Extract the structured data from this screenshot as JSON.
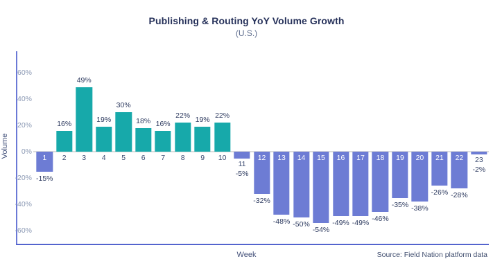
{
  "chart_data": {
    "type": "bar",
    "title": "Publishing & Routing YoY Volume Growth",
    "subtitle": "(U.S.)",
    "xlabel": "Week",
    "ylabel": "Volume",
    "source_note": "Source: Field Nation platform data",
    "categories": [
      "1",
      "2",
      "3",
      "4",
      "5",
      "6",
      "7",
      "8",
      "9",
      "10",
      "11",
      "12",
      "13",
      "14",
      "15",
      "16",
      "17",
      "18",
      "19",
      "20",
      "21",
      "22",
      "23"
    ],
    "values": [
      -15,
      16,
      49,
      19,
      30,
      18,
      16,
      22,
      19,
      22,
      -5,
      -32,
      -48,
      -50,
      -54,
      -49,
      -49,
      -46,
      -35,
      -38,
      -26,
      -28,
      -2
    ],
    "value_labels": [
      "-15%",
      "16%",
      "49%",
      "19%",
      "30%",
      "18%",
      "16%",
      "22%",
      "19%",
      "22%",
      "-5%",
      "-32%",
      "-48%",
      "-50%",
      "-54%",
      "-49%",
      "-49%",
      "-46%",
      "-35%",
      "-38%",
      "-26%",
      "-28%",
      "-2%"
    ],
    "y_ticks": [
      {
        "value": 60,
        "label": "60%"
      },
      {
        "value": 40,
        "label": "40%"
      },
      {
        "value": 20,
        "label": "20%"
      },
      {
        "value": 0,
        "label": "0%"
      },
      {
        "value": -20,
        "label": "-20%"
      },
      {
        "value": -40,
        "label": "-40%"
      },
      {
        "value": -60,
        "label": "-60%"
      }
    ],
    "ylim": [
      -60,
      60
    ],
    "grid": "zero-line-only",
    "legend": "none",
    "colors": {
      "positive_bar": "#17a9aa",
      "negative_bar": "#6d7cd4",
      "axis_line": "#6b79d6",
      "bottom_axis_line": "#5464ce",
      "zero_line": "#dcdcdc",
      "value_label": "#2d3a5f",
      "week_number": "#3a4a70",
      "bar_number_inside": "#ffffff",
      "tick_label": "#8b99b4",
      "title": "#26315a",
      "subtitle": "#5d6c8d"
    }
  }
}
